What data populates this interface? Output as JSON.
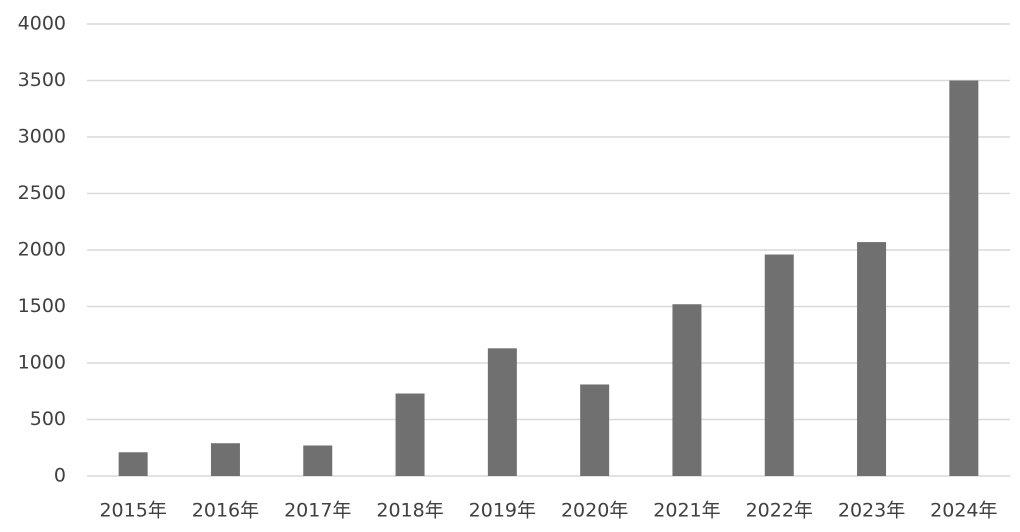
{
  "chart_data": {
    "type": "bar",
    "categories": [
      "2015年",
      "2016年",
      "2017年",
      "2018年",
      "2019年",
      "2020年",
      "2021年",
      "2022年",
      "2023年",
      "2024年"
    ],
    "values": [
      210,
      290,
      270,
      730,
      1130,
      810,
      1520,
      1960,
      2070,
      3500
    ],
    "color": "#707070",
    "ylim": [
      0,
      4000
    ],
    "yticks": [
      0,
      500,
      1000,
      1500,
      2000,
      2500,
      3000,
      3500,
      4000
    ],
    "grid": true
  }
}
